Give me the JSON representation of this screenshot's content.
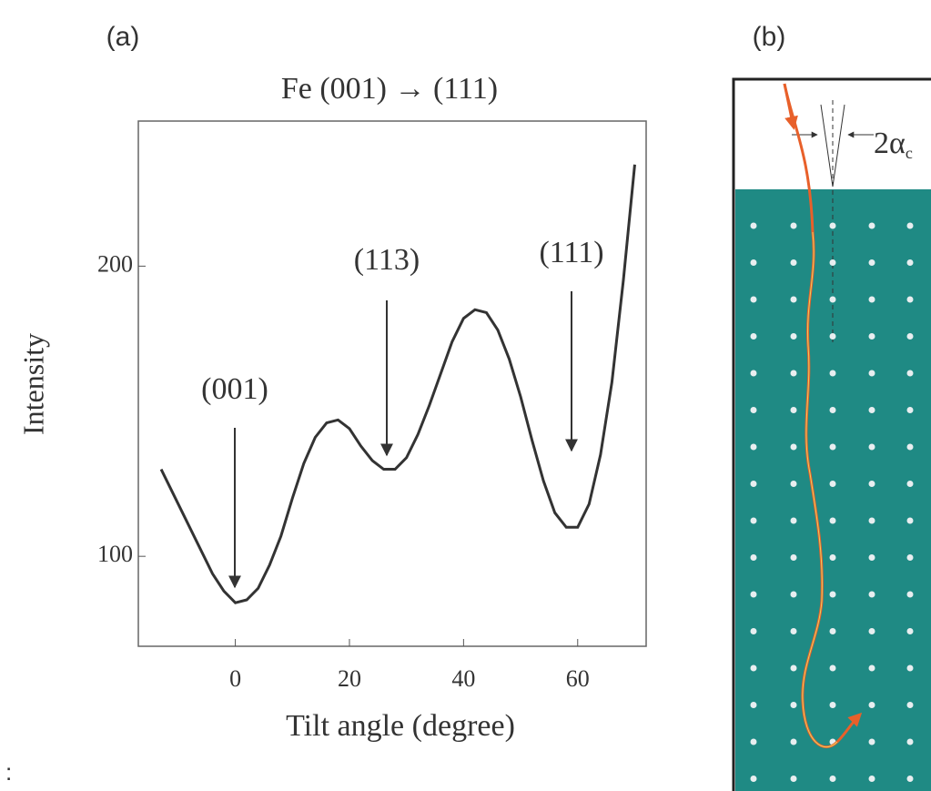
{
  "panel_label_a": "(a)",
  "chart_data": {
    "type": "line",
    "title": "Fe (001) → (111)",
    "x_label": "Tilt angle (degree)",
    "y_label": "Intensity",
    "x": [
      -13,
      -10,
      -7,
      -4,
      -2,
      0,
      2,
      4,
      6,
      8,
      10,
      12,
      14,
      16,
      18,
      20,
      22,
      24,
      26,
      28,
      30,
      32,
      34,
      36,
      38,
      40,
      42,
      44,
      46,
      48,
      50,
      52,
      54,
      56,
      58,
      60,
      62,
      64,
      66,
      68,
      70
    ],
    "series": [
      {
        "color": "#333333",
        "values": [
          130,
          118,
          106,
          94,
          88,
          84,
          85,
          89,
          97,
          107,
          120,
          132,
          141,
          146,
          147,
          144,
          138,
          133,
          130,
          130,
          134,
          142,
          152,
          163,
          174,
          182,
          185,
          184,
          178,
          168,
          155,
          140,
          126,
          115,
          110,
          110,
          118,
          135,
          160,
          195,
          235
        ]
      }
    ],
    "xlim": [
      -17,
      72
    ],
    "xticks": [
      0,
      20,
      40,
      60
    ],
    "ylim": [
      69,
      250
    ],
    "yticks": [
      100,
      200
    ],
    "annotations": [
      "(001)",
      "(113)",
      "(111)"
    ]
  },
  "panel_b": {
    "label": "(b)",
    "angle_label": "2α",
    "angle_subscript": "c"
  },
  "corner_mark": ":"
}
